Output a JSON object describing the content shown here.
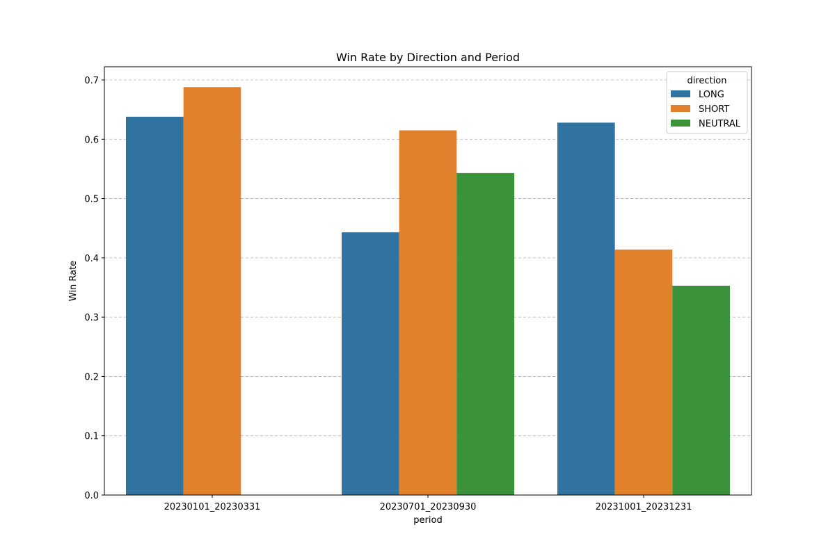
{
  "chart_data": {
    "type": "bar",
    "title": "Win Rate by Direction and Period",
    "xlabel": "period",
    "ylabel": "Win Rate",
    "categories": [
      "20230101_20230331",
      "20230701_20230930",
      "20231001_20231231"
    ],
    "series": [
      {
        "name": "LONG",
        "color": "#3274a1",
        "values": [
          0.638,
          0.443,
          0.628
        ]
      },
      {
        "name": "SHORT",
        "color": "#e1812c",
        "values": [
          0.688,
          0.615,
          0.414
        ]
      },
      {
        "name": "NEUTRAL",
        "color": "#3a923a",
        "values": [
          null,
          0.543,
          0.353
        ]
      }
    ],
    "ylim": [
      0,
      0.7
    ],
    "yticks": [
      0.0,
      0.1,
      0.2,
      0.3,
      0.4,
      0.5,
      0.6,
      0.7
    ],
    "ytick_labels": [
      "0.0",
      "0.1",
      "0.2",
      "0.3",
      "0.4",
      "0.5",
      "0.6",
      "0.7"
    ],
    "grid": "y-dashed",
    "legend": {
      "title": "direction",
      "position": "top-right"
    }
  }
}
